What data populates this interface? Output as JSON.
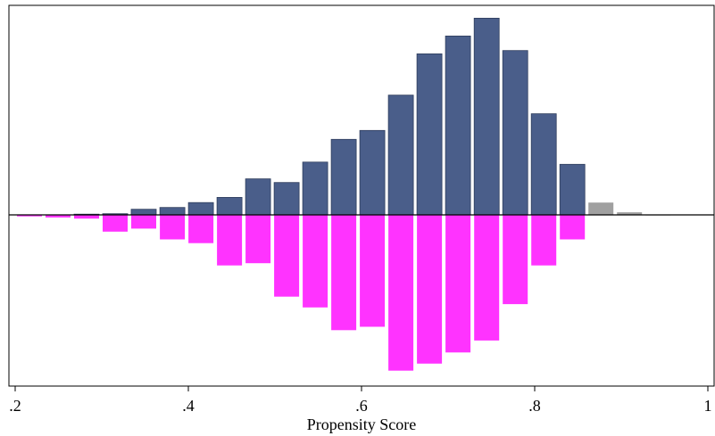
{
  "chart_data": {
    "type": "bar",
    "title": "",
    "xlabel": "Propensity Score",
    "ylabel": "",
    "xlim": [
      0.2,
      1.0
    ],
    "ylim": [
      -4.3,
      5.3
    ],
    "x_ticks": [
      {
        "value": 0.2,
        "label": ".2"
      },
      {
        "value": 0.4,
        "label": ".4"
      },
      {
        "value": 0.6,
        "label": ".6"
      },
      {
        "value": 0.8,
        "label": ".8"
      },
      {
        "value": 1.0,
        "label": "1"
      }
    ],
    "bin_width": 0.033,
    "grid": false,
    "series": [
      {
        "color": "#4a5e8a",
        "bins": [
          {
            "x": 0.2825,
            "value": 0.02
          },
          {
            "x": 0.3155,
            "value": 0.03
          },
          {
            "x": 0.3485,
            "value": 0.15
          },
          {
            "x": 0.3815,
            "value": 0.2
          },
          {
            "x": 0.4145,
            "value": 0.33
          },
          {
            "x": 0.4475,
            "value": 0.47
          },
          {
            "x": 0.4805,
            "value": 0.97
          },
          {
            "x": 0.5135,
            "value": 0.87
          },
          {
            "x": 0.5465,
            "value": 1.42
          },
          {
            "x": 0.5795,
            "value": 2.03
          },
          {
            "x": 0.6125,
            "value": 2.27
          },
          {
            "x": 0.6455,
            "value": 3.22
          },
          {
            "x": 0.6785,
            "value": 4.33
          },
          {
            "x": 0.7115,
            "value": 4.81
          },
          {
            "x": 0.7445,
            "value": 5.29
          },
          {
            "x": 0.7775,
            "value": 4.42
          },
          {
            "x": 0.8105,
            "value": 2.72
          },
          {
            "x": 0.8435,
            "value": 1.36
          }
        ]
      },
      {
        "color": "#a0a0a0",
        "bins": [
          {
            "x": 0.8765,
            "value": 0.33
          },
          {
            "x": 0.9095,
            "value": 0.07
          },
          {
            "x": 0.9425,
            "value": 0.01
          }
        ]
      },
      {
        "color": "#ff33ff",
        "bins": [
          {
            "x": 0.2165,
            "value": -0.04
          },
          {
            "x": 0.2495,
            "value": -0.07
          },
          {
            "x": 0.2825,
            "value": -0.1
          },
          {
            "x": 0.3155,
            "value": -0.45
          },
          {
            "x": 0.3485,
            "value": -0.37
          },
          {
            "x": 0.3815,
            "value": -0.66
          },
          {
            "x": 0.4145,
            "value": -0.76
          },
          {
            "x": 0.4475,
            "value": -1.36
          },
          {
            "x": 0.4805,
            "value": -1.3
          },
          {
            "x": 0.5135,
            "value": -2.2
          },
          {
            "x": 0.5465,
            "value": -2.49
          },
          {
            "x": 0.5795,
            "value": -3.1
          },
          {
            "x": 0.6125,
            "value": -3.01
          },
          {
            "x": 0.6455,
            "value": -4.19
          },
          {
            "x": 0.6785,
            "value": -4.0
          },
          {
            "x": 0.7115,
            "value": -3.7
          },
          {
            "x": 0.7445,
            "value": -3.38
          },
          {
            "x": 0.7775,
            "value": -2.4
          },
          {
            "x": 0.8105,
            "value": -1.36
          },
          {
            "x": 0.8435,
            "value": -0.66
          }
        ]
      }
    ]
  }
}
